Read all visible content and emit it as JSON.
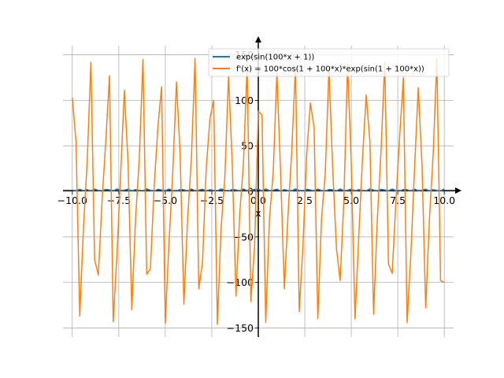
{
  "chart_data": {
    "type": "line",
    "xlabel": "x",
    "ylabel": "",
    "xlim": [
      -10.5,
      10.5
    ],
    "ylim": [
      -160,
      160
    ],
    "grid": true,
    "legend_position": "top-right",
    "x_ticks": [
      -10.0,
      -7.5,
      -5.0,
      -2.5,
      0.0,
      2.5,
      5.0,
      7.5,
      10.0
    ],
    "x_tick_labels": [
      "−10.0",
      "−7.5",
      "−5.0",
      "−2.5",
      "0.0",
      "2.5",
      "5.0",
      "7.5",
      "10.0"
    ],
    "y_ticks": [
      -150,
      -100,
      -50,
      0,
      50,
      100,
      150
    ],
    "y_tick_labels": [
      "−150",
      "−100",
      "−50",
      "0",
      "50",
      "100",
      "150"
    ],
    "x": [
      -10.0,
      -9.8,
      -9.6,
      -9.4,
      -9.2,
      -9.0,
      -8.8,
      -8.6,
      -8.4,
      -8.2,
      -8.0,
      -7.8,
      -7.6,
      -7.4,
      -7.2,
      -7.0,
      -6.8,
      -6.6,
      -6.4,
      -6.2,
      -6.0,
      -5.8,
      -5.6,
      -5.4,
      -5.2,
      -5.0,
      -4.8,
      -4.6,
      -4.4,
      -4.2,
      -4.0,
      -3.8,
      -3.6,
      -3.4,
      -3.2,
      -3.0,
      -2.8,
      -2.6,
      -2.4,
      -2.2,
      -2.0,
      -1.8,
      -1.6,
      -1.4,
      -1.2,
      -1.0,
      -0.8,
      -0.6,
      -0.4,
      -0.2,
      0.0,
      0.2,
      0.4,
      0.6,
      0.8,
      1.0,
      1.2,
      1.4,
      1.6,
      1.8,
      2.0,
      2.2,
      2.4,
      2.6,
      2.8,
      3.0,
      3.2,
      3.4,
      3.6,
      3.8,
      4.0,
      4.2,
      4.4,
      4.6,
      4.8,
      5.0,
      5.2,
      5.4,
      5.6,
      5.8,
      6.0,
      6.2,
      6.4,
      6.6,
      6.8,
      7.0,
      7.2,
      7.4,
      7.6,
      7.8,
      8.0,
      8.2,
      8.4,
      8.6,
      8.8,
      9.0,
      9.2,
      9.4,
      9.6,
      9.8,
      10.0
    ],
    "series": [
      {
        "name": "exp(sin(100*x + 1))",
        "color": "#1f77b4",
        "values": [
          1.45,
          0.62,
          2.31,
          0.85,
          1.92,
          0.41,
          2.55,
          1.13,
          0.52,
          2.18,
          1.67,
          0.39,
          2.64,
          0.74,
          1.38,
          2.42,
          0.46,
          1.98,
          1.05,
          0.59,
          2.71,
          1.21,
          0.43,
          2.27,
          1.52,
          0.68,
          2.49,
          0.94,
          0.37,
          2.06,
          1.76,
          0.55,
          2.58,
          0.81,
          1.29,
          2.36,
          0.48,
          1.87,
          1.11,
          0.63,
          2.67,
          1.41,
          0.4,
          2.13,
          1.6,
          0.71,
          2.52,
          0.89,
          0.45,
          2.21,
          2.32,
          0.57,
          2.61,
          0.78,
          1.34,
          2.44,
          0.42,
          1.94,
          1.02,
          0.61,
          2.69,
          1.25,
          0.38,
          2.24,
          1.56,
          0.66,
          2.47,
          0.97,
          0.5,
          2.02,
          1.72,
          0.53,
          2.6,
          0.83,
          1.31,
          2.39,
          0.47,
          1.9,
          1.08,
          0.64,
          2.7,
          1.44,
          0.41,
          2.16,
          1.63,
          0.73,
          2.5,
          0.91,
          0.44,
          2.09,
          1.8,
          0.56,
          2.57,
          0.79,
          1.27,
          2.41,
          0.49,
          1.85,
          1.15,
          0.6,
          2.65
        ]
      },
      {
        "name": "f'(x) = 100*cos(1 + 100*x)*exp(sin(1 + 100*x))",
        "color": "#ff7f0e",
        "values": [
          103,
          55,
          -137,
          -40,
          32,
          142,
          -75,
          -92,
          -10,
          55,
          127,
          -143,
          -70,
          20,
          111,
          30,
          -130,
          -30,
          35,
          145,
          -91,
          -85,
          5,
          70,
          115,
          -145,
          -56,
          20,
          120,
          40,
          -124,
          -30,
          35,
          146,
          -107,
          -78,
          25,
          80,
          100,
          -146,
          -40,
          15,
          127,
          30,
          -115,
          -25,
          30,
          139,
          -121,
          -60,
          88,
          84,
          -144,
          -30,
          20,
          131,
          20,
          -107,
          -25,
          45,
          137,
          -132,
          -60,
          40,
          97,
          70,
          -140,
          -30,
          20,
          135,
          25,
          -62,
          -98,
          -10,
          140,
          30,
          -140,
          -50,
          35,
          106,
          55,
          -135,
          -30,
          45,
          142,
          -80,
          -90,
          -10,
          60,
          125,
          -144,
          -70,
          25,
          114,
          30,
          -128,
          -30,
          40,
          145,
          -98,
          -100
        ]
      }
    ]
  }
}
